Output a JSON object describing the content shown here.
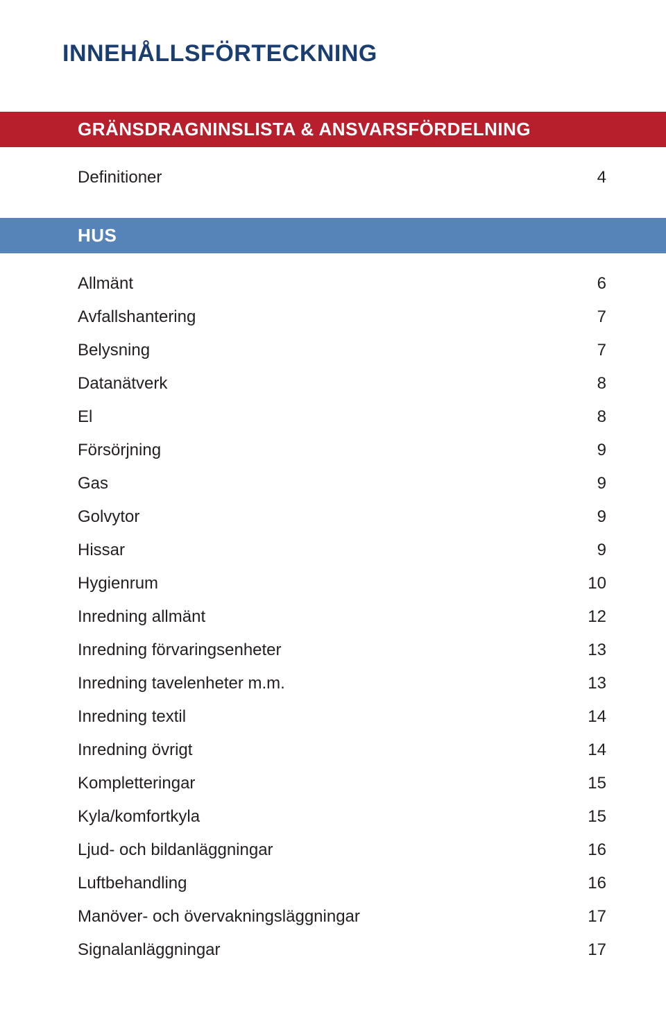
{
  "document": {
    "title": "INNEHÅLLSFÖRTECKNING",
    "title_color": "#1a3e6f",
    "title_fontsize_pt": 26,
    "body_fontsize_pt": 18,
    "text_color": "#231f20",
    "background_color": "#ffffff"
  },
  "sections": [
    {
      "id": "main",
      "heading": "GRÄNSDRAGNINSLISTA & ANSVARSFÖRDELNING",
      "banner_bg": "#b81f2d",
      "banner_fg": "#ffffff",
      "entries": [
        {
          "label": "Definitioner",
          "page": "4"
        }
      ]
    },
    {
      "id": "hus",
      "heading": "HUS",
      "banner_bg": "#5784b8",
      "banner_fg": "#ffffff",
      "entries": [
        {
          "label": "Allmänt",
          "page": "6"
        },
        {
          "label": "Avfallshantering",
          "page": "7"
        },
        {
          "label": "Belysning",
          "page": "7"
        },
        {
          "label": "Datanätverk",
          "page": "8"
        },
        {
          "label": "El",
          "page": "8"
        },
        {
          "label": "Försörjning",
          "page": "9"
        },
        {
          "label": "Gas",
          "page": "9"
        },
        {
          "label": "Golvytor",
          "page": "9"
        },
        {
          "label": "Hissar",
          "page": "9"
        },
        {
          "label": "Hygienrum",
          "page": "10"
        },
        {
          "label": "Inredning allmänt",
          "page": "12"
        },
        {
          "label": "Inredning förvaringsenheter",
          "page": "13"
        },
        {
          "label": "Inredning tavelenheter m.m.",
          "page": "13"
        },
        {
          "label": "Inredning textil",
          "page": "14"
        },
        {
          "label": "Inredning övrigt",
          "page": "14"
        },
        {
          "label": "Kompletteringar",
          "page": "15"
        },
        {
          "label": "Kyla/komfortkyla",
          "page": "15"
        },
        {
          "label": "Ljud- och bildanläggningar",
          "page": "16"
        },
        {
          "label": "Luftbehandling",
          "page": "16"
        },
        {
          "label": "Manöver- och övervakningsläggningar",
          "page": "17"
        },
        {
          "label": "Signalanläggningar",
          "page": "17"
        }
      ]
    }
  ]
}
